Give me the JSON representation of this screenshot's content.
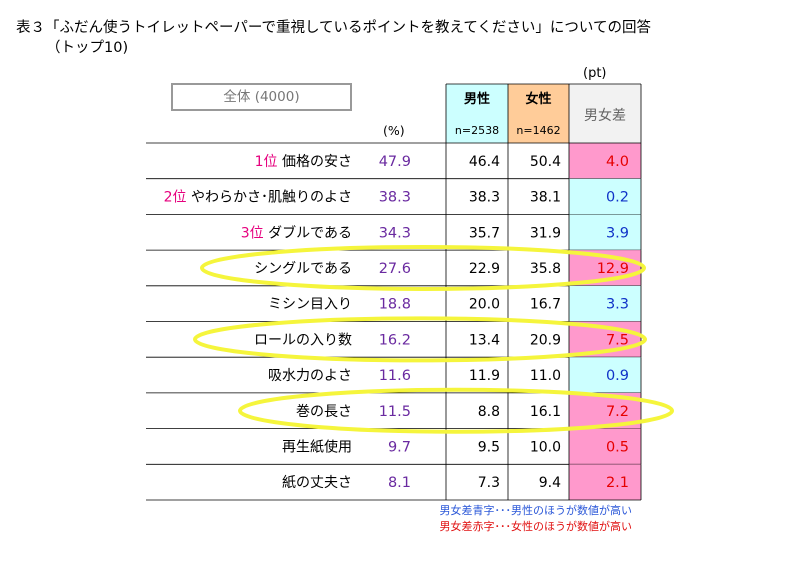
{
  "title": "表３「ふだん使うトイレットペーパーで重視しているポイントを教えてください」についての回答",
  "subtitle": "（トップ10)",
  "pt_unit": "(pt)",
  "pct_unit": "(%)",
  "all_label": "全体 (4000)",
  "colors": {
    "male_bg": "#ccffff",
    "female_bg": "#ffcc99",
    "diff_header_bg": "#f2f2f2",
    "diff_pink": "#ff99cc",
    "diff_cyan": "#ccffff",
    "rank": "#e6007e",
    "total": "#6a2aa0",
    "blue": "#1033c8",
    "red": "#e60000",
    "highlight": "#f5f53c"
  },
  "chart_data": {
    "type": "table",
    "columns": [
      {
        "key": "total",
        "label": "",
        "sub": ""
      },
      {
        "key": "male",
        "label": "男性",
        "sub": "n=2538"
      },
      {
        "key": "female",
        "label": "女性",
        "sub": "n=1462"
      },
      {
        "key": "diff",
        "label": "男女差",
        "sub": ""
      }
    ],
    "rows": [
      {
        "rank": "1位",
        "item": "価格の安さ",
        "total": 47.9,
        "male": 46.4,
        "female": 50.4,
        "diff": 4.0,
        "higher": "female",
        "highlight": false
      },
      {
        "rank": "2位",
        "item": "やわらかさ･肌触りのよさ",
        "total": 38.3,
        "male": 38.3,
        "female": 38.1,
        "diff": 0.2,
        "higher": "male",
        "highlight": false
      },
      {
        "rank": "3位",
        "item": "ダブルである",
        "total": 34.3,
        "male": 35.7,
        "female": 31.9,
        "diff": 3.9,
        "higher": "male",
        "highlight": false
      },
      {
        "rank": "",
        "item": "シングルである",
        "total": 27.6,
        "male": 22.9,
        "female": 35.8,
        "diff": 12.9,
        "higher": "female",
        "highlight": true
      },
      {
        "rank": "",
        "item": "ミシン目入り",
        "total": 18.8,
        "male": 20.0,
        "female": 16.7,
        "diff": 3.3,
        "higher": "male",
        "highlight": false
      },
      {
        "rank": "",
        "item": "ロールの入り数",
        "total": 16.2,
        "male": 13.4,
        "female": 20.9,
        "diff": 7.5,
        "higher": "female",
        "highlight": true
      },
      {
        "rank": "",
        "item": "吸水力のよさ",
        "total": 11.6,
        "male": 11.9,
        "female": 11.0,
        "diff": 0.9,
        "higher": "male",
        "highlight": false
      },
      {
        "rank": "",
        "item": "巻の長さ",
        "total": 11.5,
        "male": 8.8,
        "female": 16.1,
        "diff": 7.2,
        "higher": "female",
        "highlight": true
      },
      {
        "rank": "",
        "item": "再生紙使用",
        "total": 9.7,
        "male": 9.5,
        "female": 10.0,
        "diff": 0.5,
        "higher": "female",
        "highlight": false
      },
      {
        "rank": "",
        "item": "紙の丈夫さ",
        "total": 8.1,
        "male": 7.3,
        "female": 9.4,
        "diff": 2.1,
        "higher": "female",
        "highlight": false
      }
    ]
  },
  "notes": {
    "blue": "男女差青字･･･男性のほうが数値が高い",
    "red": "男女差赤字･･･女性のほうが数値が高い"
  }
}
